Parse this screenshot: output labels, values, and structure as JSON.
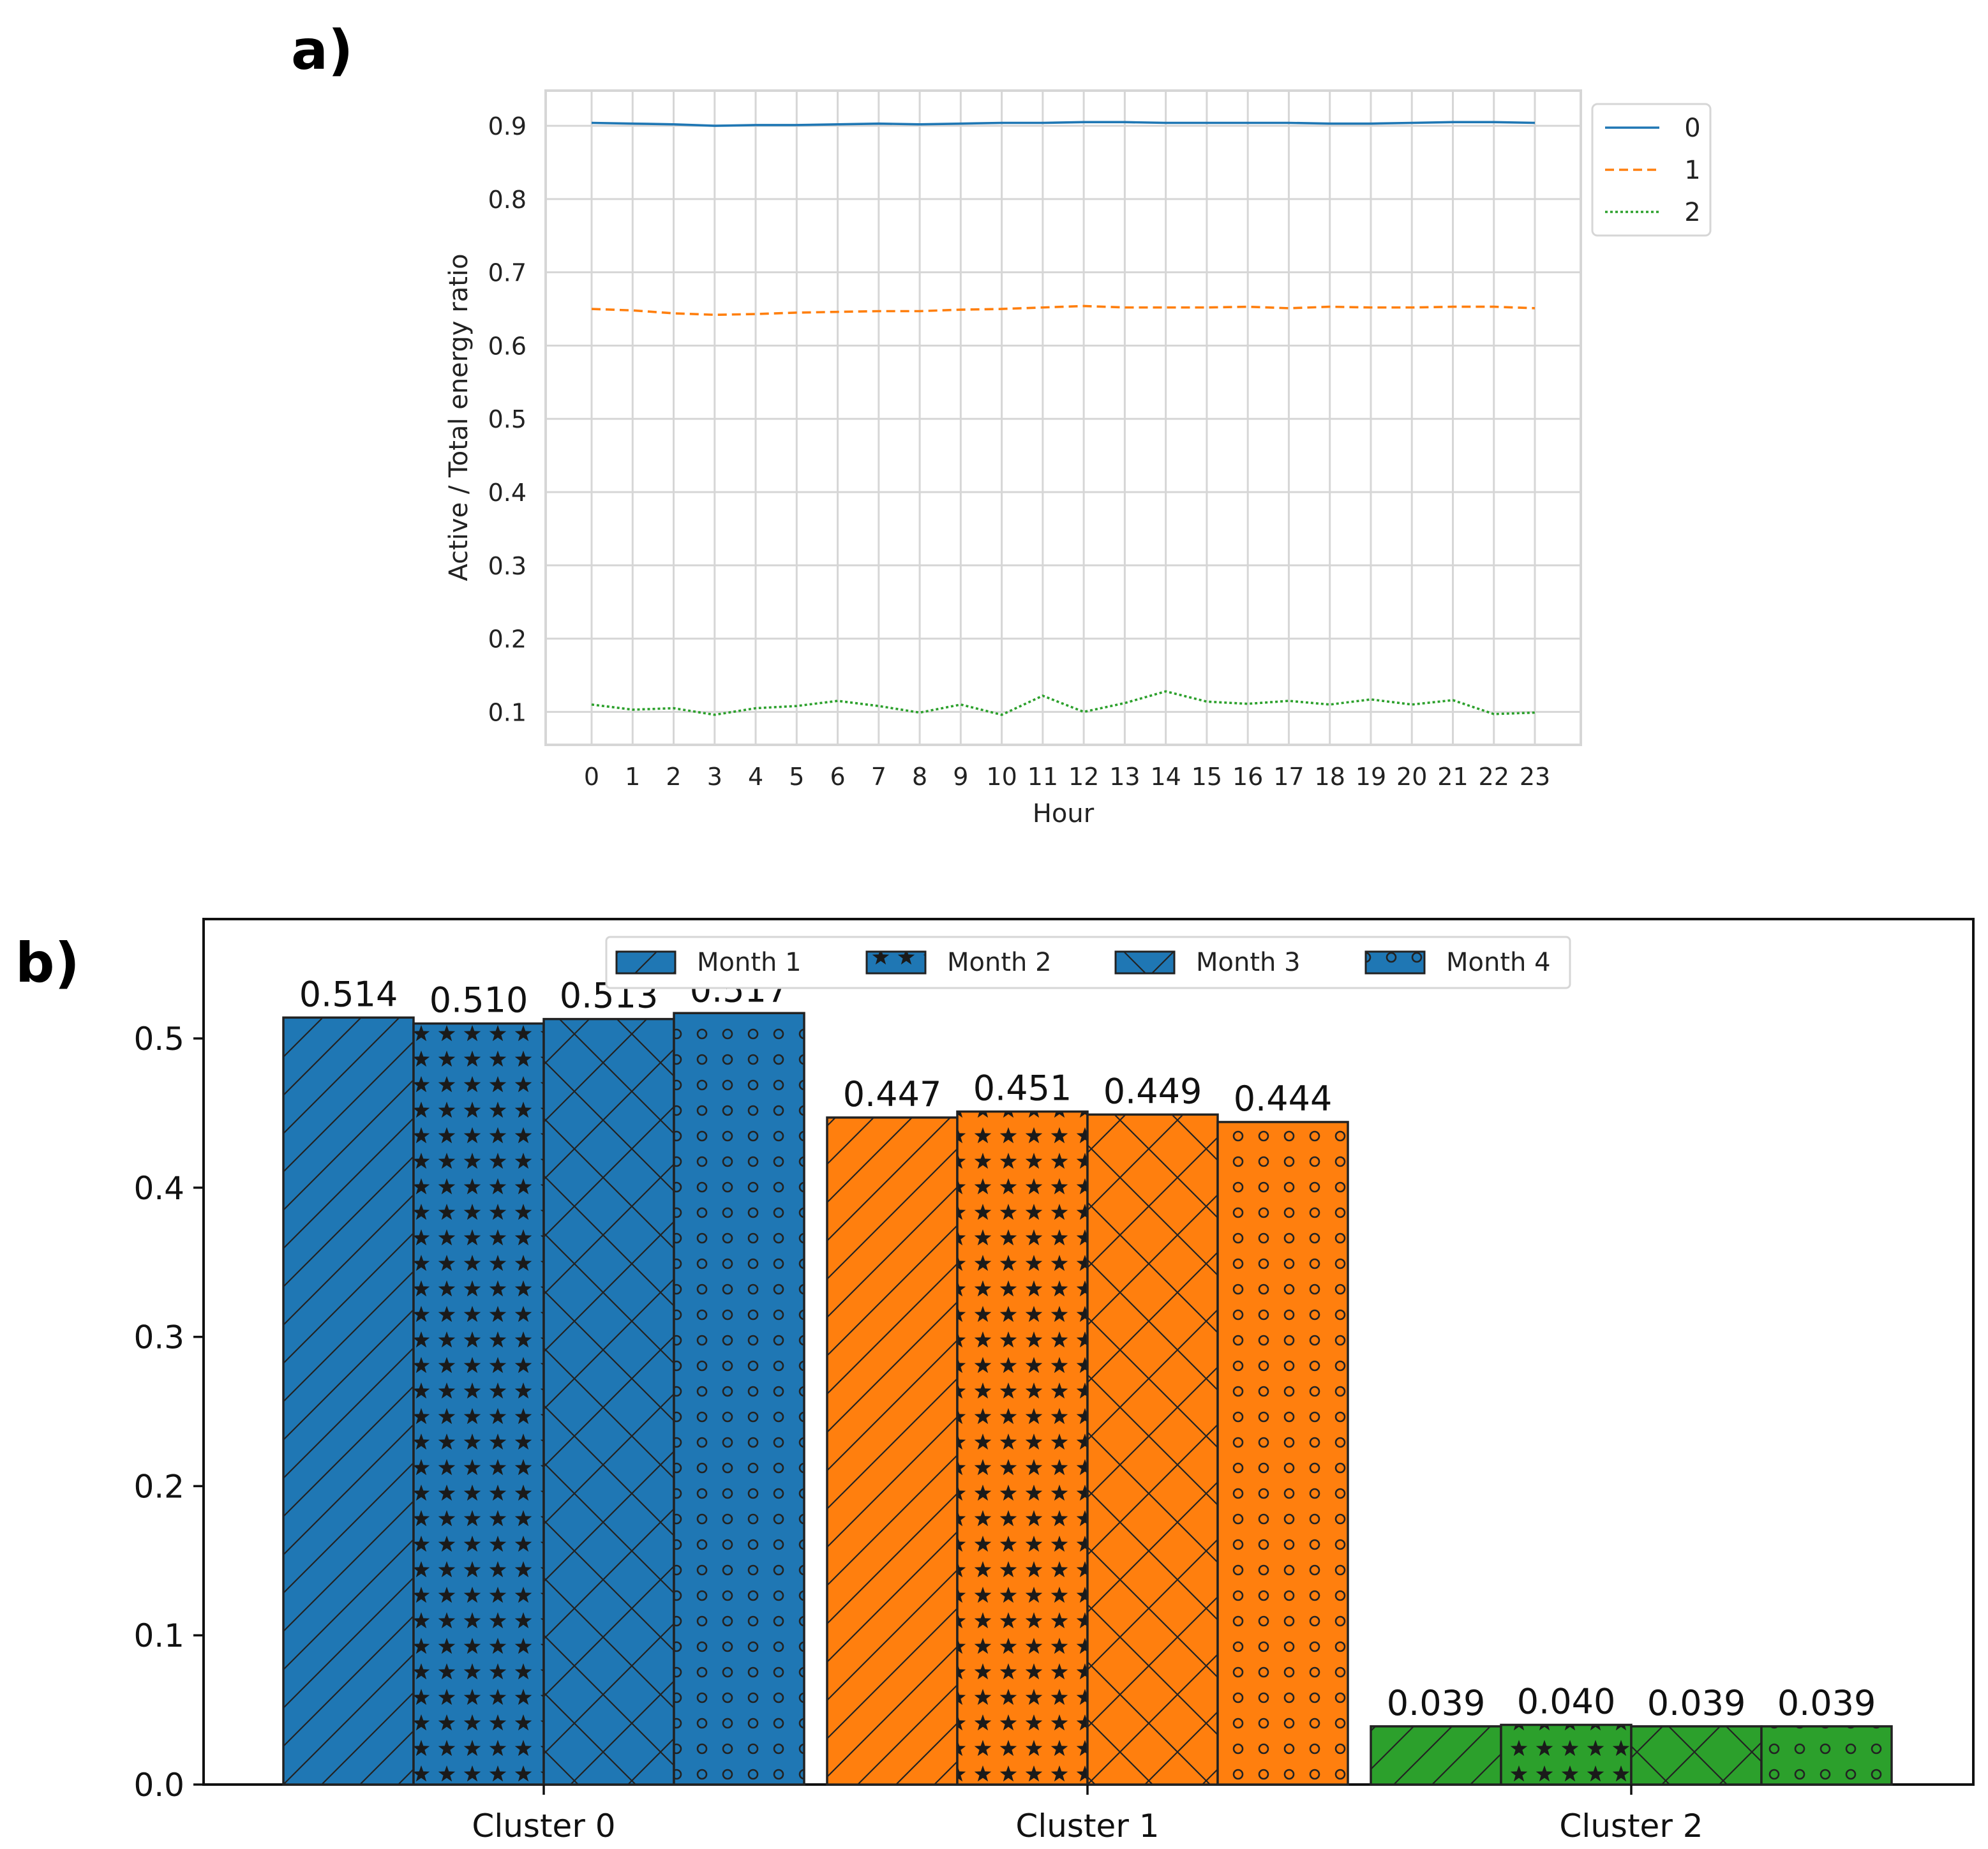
{
  "panels": {
    "a_label": "a)",
    "b_label": "b)"
  },
  "colors": {
    "series0": "#1f77b4",
    "series1": "#ff7f0e",
    "series2": "#2ca02c",
    "grid": "#d6d6d6",
    "edge": "#222222"
  },
  "chart_data": [
    {
      "id": "panel-a",
      "type": "line",
      "title": "",
      "xlabel": "Hour",
      "ylabel": "Active / Total energy ratio",
      "x": [
        0,
        1,
        2,
        3,
        4,
        5,
        6,
        7,
        8,
        9,
        10,
        11,
        12,
        13,
        14,
        15,
        16,
        17,
        18,
        19,
        20,
        21,
        22,
        23
      ],
      "xticks": [
        "0",
        "1",
        "2",
        "3",
        "4",
        "5",
        "6",
        "7",
        "8",
        "9",
        "10",
        "11",
        "12",
        "13",
        "14",
        "15",
        "16",
        "17",
        "18",
        "19",
        "20",
        "21",
        "22",
        "23"
      ],
      "yticks": [
        "0.1",
        "0.2",
        "0.3",
        "0.4",
        "0.5",
        "0.6",
        "0.7",
        "0.8",
        "0.9"
      ],
      "ylim": [
        0.055,
        0.948
      ],
      "grid": true,
      "legend_position": "outside-top-right",
      "series": [
        {
          "name": "0",
          "style": "solid",
          "values": [
            0.904,
            0.903,
            0.902,
            0.9,
            0.901,
            0.901,
            0.902,
            0.903,
            0.902,
            0.903,
            0.904,
            0.904,
            0.905,
            0.905,
            0.904,
            0.904,
            0.904,
            0.904,
            0.903,
            0.903,
            0.904,
            0.905,
            0.905,
            0.904
          ]
        },
        {
          "name": "1",
          "style": "dashed",
          "values": [
            0.65,
            0.648,
            0.644,
            0.642,
            0.643,
            0.645,
            0.646,
            0.647,
            0.647,
            0.649,
            0.65,
            0.652,
            0.654,
            0.652,
            0.652,
            0.652,
            0.653,
            0.651,
            0.653,
            0.652,
            0.652,
            0.653,
            0.653,
            0.651
          ]
        },
        {
          "name": "2",
          "style": "dotted",
          "values": [
            0.11,
            0.103,
            0.105,
            0.096,
            0.105,
            0.108,
            0.115,
            0.108,
            0.099,
            0.11,
            0.096,
            0.122,
            0.1,
            0.112,
            0.128,
            0.114,
            0.111,
            0.115,
            0.11,
            0.117,
            0.11,
            0.116,
            0.097,
            0.099
          ]
        }
      ]
    },
    {
      "id": "panel-b",
      "type": "bar",
      "title": "",
      "xlabel": "",
      "ylabel": "",
      "categories": [
        "Cluster 0",
        "Cluster 1",
        "Cluster 2"
      ],
      "yticks": [
        "0.0",
        "0.1",
        "0.2",
        "0.3",
        "0.4",
        "0.5"
      ],
      "ylim": [
        0,
        0.58
      ],
      "grid": false,
      "legend_position": "top-center",
      "series": [
        {
          "name": "Month 1",
          "hatch": "diagonal",
          "values": [
            0.514,
            0.447,
            0.039
          ],
          "labels": [
            "0.514",
            "0.447",
            "0.039"
          ]
        },
        {
          "name": "Month 2",
          "hatch": "stars",
          "values": [
            0.51,
            0.451,
            0.04
          ],
          "labels": [
            "0.510",
            "0.451",
            "0.040"
          ]
        },
        {
          "name": "Month 3",
          "hatch": "crosshatch",
          "values": [
            0.513,
            0.449,
            0.039
          ],
          "labels": [
            "0.513",
            "0.449",
            "0.039"
          ]
        },
        {
          "name": "Month 4",
          "hatch": "circles",
          "values": [
            0.517,
            0.444,
            0.039
          ],
          "labels": [
            "0.517",
            "0.444",
            "0.039"
          ]
        }
      ]
    }
  ]
}
